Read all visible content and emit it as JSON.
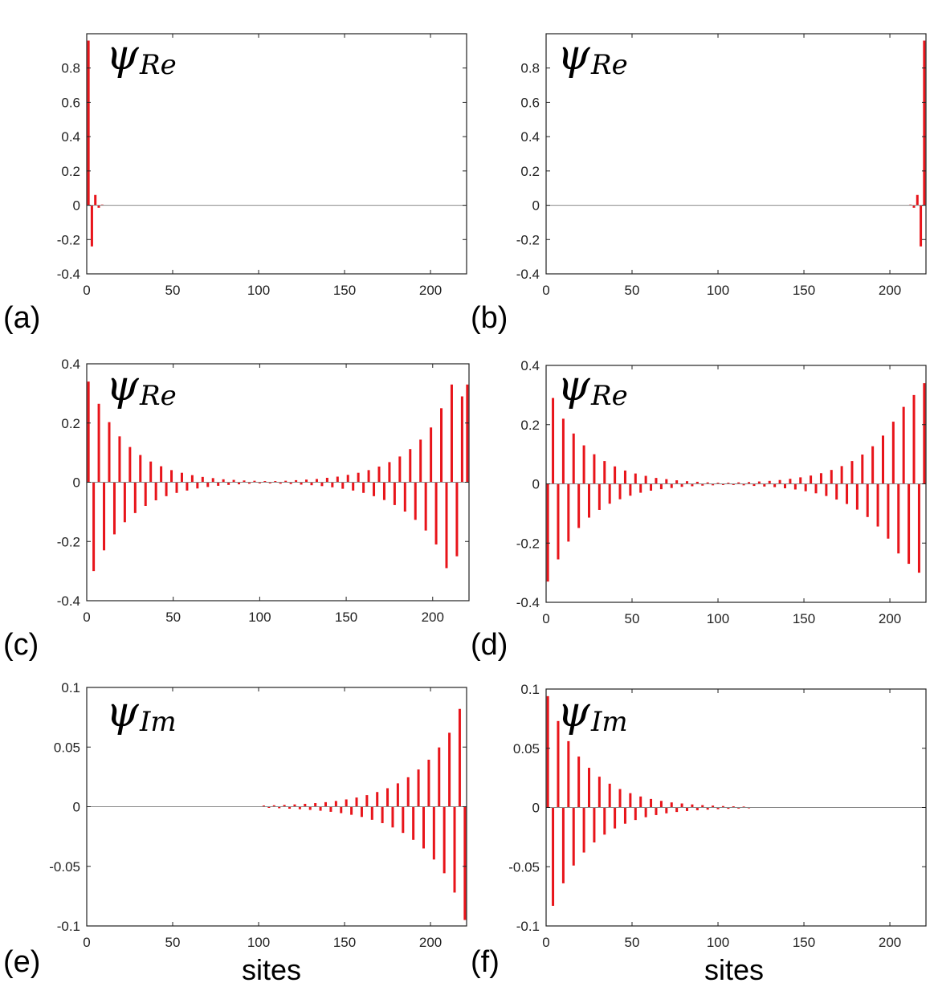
{
  "chart_data": [
    {
      "id": "a",
      "panel_label": "(a)",
      "type": "bar",
      "annotation": {
        "symbol": "ψ",
        "subscript": "Re"
      },
      "xlabel": "",
      "xlim": [
        0,
        221
      ],
      "ylim": [
        -0.4,
        1.0
      ],
      "xticks": [
        0,
        50,
        100,
        150,
        200
      ],
      "xtick_labels": [
        "0",
        "50",
        "100",
        "150",
        "200"
      ],
      "yticks": [
        -0.4,
        -0.2,
        0,
        0.2,
        0.4,
        0.6,
        0.8
      ],
      "ytick_labels": [
        "-0.4",
        "-0.2",
        "0",
        "0.2",
        "0.4",
        "0.6",
        "0.8"
      ],
      "x": [
        1,
        3,
        5,
        7,
        9
      ],
      "values": [
        0.96,
        -0.24,
        0.06,
        -0.015,
        0.004
      ]
    },
    {
      "id": "b",
      "panel_label": "(b)",
      "type": "bar",
      "annotation": {
        "symbol": "ψ",
        "subscript": "Re"
      },
      "xlabel": "",
      "xlim": [
        0,
        221
      ],
      "ylim": [
        -0.4,
        1.0
      ],
      "xticks": [
        0,
        50,
        100,
        150,
        200
      ],
      "xtick_labels": [
        "0",
        "50",
        "100",
        "150",
        "200"
      ],
      "yticks": [
        -0.4,
        -0.2,
        0,
        0.2,
        0.4,
        0.6,
        0.8
      ],
      "ytick_labels": [
        "-0.4",
        "-0.2",
        "0",
        "0.2",
        "0.4",
        "0.6",
        "0.8"
      ],
      "x": [
        212,
        214,
        216,
        218,
        220
      ],
      "values": [
        0.004,
        -0.015,
        0.06,
        -0.24,
        0.96
      ]
    },
    {
      "id": "c",
      "panel_label": "(c)",
      "type": "bar",
      "annotation": {
        "symbol": "ψ",
        "subscript": "Re"
      },
      "xlabel": "",
      "xlim": [
        0,
        221
      ],
      "ylim": [
        -0.4,
        0.4
      ],
      "xticks": [
        0,
        50,
        100,
        150,
        200
      ],
      "xtick_labels": [
        "0",
        "50",
        "100",
        "150",
        "200"
      ],
      "yticks": [
        -0.4,
        -0.2,
        0,
        0.2,
        0.4
      ],
      "ytick_labels": [
        "-0.4",
        "-0.2",
        "0",
        "0.2",
        "0.4"
      ],
      "x": [
        1,
        4,
        7,
        10,
        13,
        16,
        19,
        22,
        25,
        28,
        31,
        34,
        37,
        40,
        43,
        46,
        49,
        52,
        55,
        58,
        61,
        64,
        67,
        70,
        73,
        76,
        79,
        82,
        85,
        88,
        91,
        94,
        97,
        100,
        103,
        106,
        109,
        112,
        115,
        118,
        121,
        124,
        127,
        130,
        133,
        136,
        139,
        142,
        145,
        148,
        151,
        154,
        157,
        160,
        163,
        166,
        169,
        172,
        175,
        178,
        181,
        184,
        187,
        190,
        193,
        196,
        199,
        202,
        205,
        208,
        211,
        214,
        217,
        220
      ],
      "values": [
        0.34,
        -0.3,
        0.265,
        -0.23,
        0.203,
        -0.176,
        0.155,
        -0.135,
        0.119,
        -0.104,
        0.092,
        -0.08,
        0.07,
        -0.061,
        0.054,
        -0.047,
        0.041,
        -0.036,
        0.032,
        -0.028,
        0.024,
        -0.021,
        0.018,
        -0.016,
        0.014,
        -0.012,
        0.01,
        -0.009,
        0.008,
        -0.007,
        0.006,
        -0.005,
        0.005,
        -0.004,
        0.004,
        -0.004,
        0.004,
        -0.005,
        0.005,
        -0.006,
        0.007,
        -0.008,
        0.009,
        -0.01,
        0.011,
        -0.013,
        0.015,
        -0.017,
        0.019,
        -0.022,
        0.025,
        -0.028,
        0.032,
        -0.036,
        0.041,
        -0.047,
        0.053,
        -0.06,
        0.068,
        -0.077,
        0.087,
        -0.099,
        0.112,
        -0.127,
        0.144,
        -0.163,
        0.185,
        -0.21,
        0.25,
        -0.29,
        0.33,
        -0.25,
        0.29,
        0.33
      ]
    },
    {
      "id": "d",
      "panel_label": "(d)",
      "type": "bar",
      "annotation": {
        "symbol": "ψ",
        "subscript": "Re"
      },
      "xlabel": "",
      "xlim": [
        0,
        221
      ],
      "ylim": [
        -0.4,
        0.4
      ],
      "xticks": [
        0,
        50,
        100,
        150,
        200
      ],
      "xtick_labels": [
        "0",
        "50",
        "100",
        "150",
        "200"
      ],
      "yticks": [
        -0.4,
        -0.2,
        0,
        0.2,
        0.4
      ],
      "ytick_labels": [
        "-0.4",
        "-0.2",
        "0",
        "0.2",
        "0.4"
      ],
      "x": [
        1,
        4,
        7,
        10,
        13,
        16,
        19,
        22,
        25,
        28,
        31,
        34,
        37,
        40,
        43,
        46,
        49,
        52,
        55,
        58,
        61,
        64,
        67,
        70,
        73,
        76,
        79,
        82,
        85,
        88,
        91,
        94,
        97,
        100,
        103,
        106,
        109,
        112,
        115,
        118,
        121,
        124,
        127,
        130,
        133,
        136,
        139,
        142,
        145,
        148,
        151,
        154,
        157,
        160,
        163,
        166,
        169,
        172,
        175,
        178,
        181,
        184,
        187,
        190,
        193,
        196,
        199,
        202,
        205,
        208,
        211,
        214,
        217,
        220
      ],
      "values": [
        -0.33,
        0.29,
        -0.255,
        0.22,
        -0.195,
        0.17,
        -0.149,
        0.13,
        -0.114,
        0.1,
        -0.088,
        0.077,
        -0.067,
        0.059,
        -0.052,
        0.045,
        -0.04,
        0.035,
        -0.03,
        0.027,
        -0.023,
        0.02,
        -0.018,
        0.016,
        -0.014,
        0.012,
        -0.01,
        0.009,
        -0.008,
        0.007,
        -0.006,
        0.005,
        -0.005,
        0.004,
        -0.004,
        0.004,
        -0.004,
        0.005,
        -0.005,
        0.006,
        -0.007,
        0.008,
        -0.009,
        0.01,
        -0.011,
        0.013,
        -0.015,
        0.017,
        -0.019,
        0.022,
        -0.025,
        0.028,
        -0.032,
        0.036,
        -0.041,
        0.047,
        -0.053,
        0.06,
        -0.068,
        0.077,
        -0.087,
        0.099,
        -0.112,
        0.127,
        -0.144,
        0.163,
        -0.185,
        0.21,
        -0.235,
        0.26,
        -0.27,
        0.3,
        -0.3,
        0.34
      ]
    },
    {
      "id": "e",
      "panel_label": "(e)",
      "type": "bar",
      "annotation": {
        "symbol": "ψ",
        "subscript": "Im"
      },
      "xlabel": "sites",
      "xlim": [
        0,
        221
      ],
      "ylim": [
        -0.1,
        0.1
      ],
      "xticks": [
        0,
        50,
        100,
        150,
        200
      ],
      "xtick_labels": [
        "0",
        "50",
        "100",
        "150",
        "200"
      ],
      "yticks": [
        -0.1,
        -0.05,
        0,
        0.05,
        0.1
      ],
      "ytick_labels": [
        "-0.1",
        "-0.05",
        "0",
        "0.05",
        "0.1"
      ],
      "x": [
        103,
        106,
        109,
        112,
        115,
        118,
        121,
        124,
        127,
        130,
        133,
        136,
        139,
        142,
        145,
        148,
        151,
        154,
        157,
        160,
        163,
        166,
        169,
        172,
        175,
        178,
        181,
        184,
        187,
        190,
        193,
        196,
        199,
        202,
        205,
        208,
        211,
        214,
        217,
        220
      ],
      "values": [
        0.001,
        -0.001,
        0.0012,
        -0.0013,
        0.0015,
        -0.0017,
        0.0019,
        -0.0021,
        0.0024,
        -0.0027,
        0.003,
        -0.0034,
        0.0038,
        -0.0043,
        0.0048,
        -0.0054,
        0.0061,
        -0.0068,
        0.0077,
        -0.0086,
        0.0097,
        -0.011,
        0.0123,
        -0.0138,
        0.0155,
        -0.0174,
        0.0196,
        -0.022,
        0.0247,
        -0.0278,
        0.0312,
        -0.035,
        0.0394,
        -0.0443,
        0.0497,
        -0.0558,
        0.062,
        -0.072,
        0.082,
        -0.095
      ]
    },
    {
      "id": "f",
      "panel_label": "(f)",
      "type": "bar",
      "annotation": {
        "symbol": "ψ",
        "subscript": "Im"
      },
      "xlabel": "sites",
      "xlim": [
        0,
        221
      ],
      "ylim": [
        -0.1,
        0.1
      ],
      "xticks": [
        0,
        50,
        100,
        150,
        200
      ],
      "xtick_labels": [
        "0",
        "50",
        "100",
        "150",
        "200"
      ],
      "yticks": [
        -0.1,
        -0.05,
        0,
        0.05,
        0.1
      ],
      "ytick_labels": [
        "-0.1",
        "-0.05",
        "0",
        "0.05",
        "0.1"
      ],
      "x": [
        1,
        4,
        7,
        10,
        13,
        16,
        19,
        22,
        25,
        28,
        31,
        34,
        37,
        40,
        43,
        46,
        49,
        52,
        55,
        58,
        61,
        64,
        67,
        70,
        73,
        76,
        79,
        82,
        85,
        88,
        91,
        94,
        97,
        100,
        103,
        106,
        109,
        112,
        115,
        118
      ],
      "values": [
        0.094,
        -0.083,
        0.073,
        -0.064,
        0.056,
        -0.049,
        0.043,
        -0.038,
        0.0335,
        -0.0295,
        0.026,
        -0.0229,
        0.0201,
        -0.0177,
        0.0156,
        -0.0137,
        0.0121,
        -0.0106,
        0.0093,
        -0.0082,
        0.0072,
        -0.0064,
        0.0056,
        -0.0049,
        0.0043,
        -0.0038,
        0.0034,
        -0.003,
        0.0026,
        -0.0023,
        0.002,
        -0.0018,
        0.0016,
        -0.0014,
        0.0012,
        -0.0011,
        0.001,
        -0.0009,
        0.0008,
        -0.0007
      ]
    }
  ],
  "colors": {
    "bars": "#e8141a",
    "zero_line": "#888888",
    "axes": "#222222"
  }
}
